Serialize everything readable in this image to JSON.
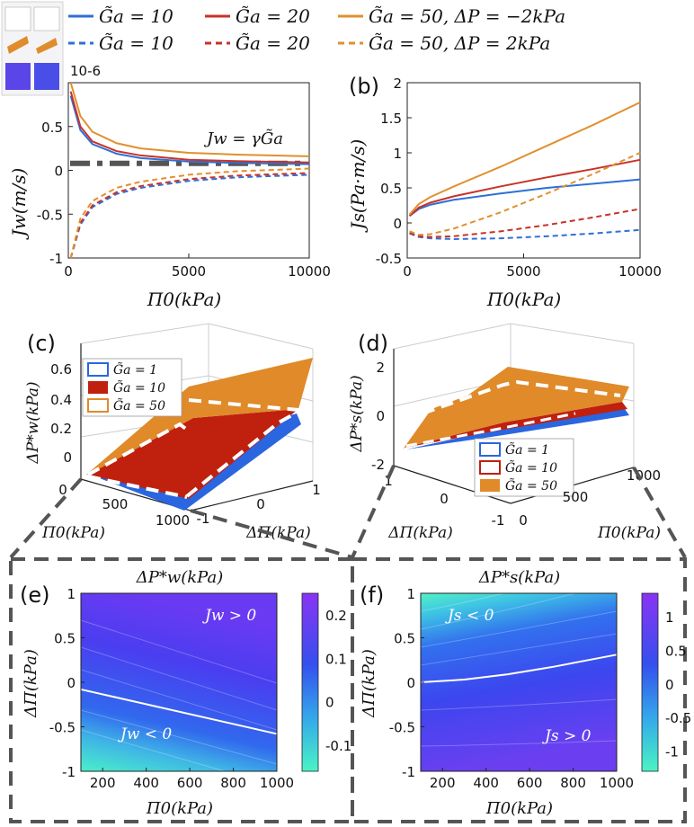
{
  "legend": {
    "entries": [
      {
        "label": "G̃a = 10",
        "color": "#2f6fd6",
        "style": "solid"
      },
      {
        "label": "G̃a = 20",
        "color": "#c83228",
        "style": "solid"
      },
      {
        "label": "G̃a = 50, ΔP = −2kPa",
        "color": "#e0902e",
        "style": "solid"
      },
      {
        "label": "G̃a = 10",
        "color": "#2f6fd6",
        "style": "dashed"
      },
      {
        "label": "G̃a = 20",
        "color": "#c83228",
        "style": "dashed"
      },
      {
        "label": "G̃a = 50, ΔP = 2kPa",
        "color": "#e0902e",
        "style": "dashed"
      }
    ]
  },
  "panels": {
    "a": {
      "label": "(a)",
      "exponent": "10-6",
      "annotation": "Jw = γG̃a"
    },
    "b": {
      "label": "(b)"
    },
    "c": {
      "label": "(c)"
    },
    "d": {
      "label": "(d)"
    },
    "e": {
      "label": "(e)",
      "title": "ΔP*w(kPa)",
      "region_top": "Jw > 0",
      "region_bottom": "Jw < 0"
    },
    "f": {
      "label": "(f)",
      "title": "ΔP*s(kPa)",
      "region_top": "Js < 0",
      "region_bottom": "Js > 0"
    }
  },
  "colors": {
    "blue": "#2f6fd6",
    "red": "#c83228",
    "orange": "#e0902e",
    "frame": "#555555"
  },
  "chart_data": [
    {
      "id": "a",
      "type": "line",
      "xlabel": "Π0(kPa)",
      "ylabel": "Jw(m/s)",
      "xlim": [
        0,
        10000
      ],
      "ylim": [
        -1,
        1
      ],
      "xticks": [
        "0",
        "5000",
        "10000"
      ],
      "yticks": [
        "-1",
        "-0.5",
        "0",
        "0.5"
      ],
      "series": [
        {
          "name": "G̃a=10, ΔP=-2kPa",
          "style": "solid",
          "color": "blue",
          "x": [
            100,
            500,
            1000,
            2000,
            3000,
            5000,
            7000,
            10000
          ],
          "y": [
            0.85,
            0.46,
            0.3,
            0.19,
            0.14,
            0.1,
            0.085,
            0.07
          ]
        },
        {
          "name": "G̃a=20, ΔP=-2kPa",
          "style": "solid",
          "color": "red",
          "x": [
            100,
            500,
            1000,
            2000,
            3000,
            5000,
            7000,
            10000
          ],
          "y": [
            0.9,
            0.5,
            0.33,
            0.22,
            0.17,
            0.12,
            0.105,
            0.09
          ]
        },
        {
          "name": "G̃a=50, ΔP=-2kPa",
          "style": "solid",
          "color": "orange",
          "x": [
            100,
            500,
            1000,
            2000,
            3000,
            5000,
            7000,
            10000
          ],
          "y": [
            1.0,
            0.62,
            0.44,
            0.31,
            0.25,
            0.2,
            0.18,
            0.16
          ]
        },
        {
          "name": "G̃a=10, ΔP=2kPa",
          "style": "dashed",
          "color": "blue",
          "x": [
            100,
            500,
            1000,
            2000,
            3000,
            5000,
            7000,
            10000
          ],
          "y": [
            -1.0,
            -0.62,
            -0.42,
            -0.27,
            -0.2,
            -0.12,
            -0.08,
            -0.05
          ]
        },
        {
          "name": "G̃a=20, ΔP=2kPa",
          "style": "dashed",
          "color": "red",
          "x": [
            100,
            500,
            1000,
            2000,
            3000,
            5000,
            7000,
            10000
          ],
          "y": [
            -1.0,
            -0.6,
            -0.4,
            -0.25,
            -0.18,
            -0.1,
            -0.06,
            -0.03
          ]
        },
        {
          "name": "G̃a=50, ΔP=2kPa",
          "style": "dashed",
          "color": "orange",
          "x": [
            100,
            500,
            1000,
            2000,
            3000,
            5000,
            7000,
            10000
          ],
          "y": [
            -1.0,
            -0.55,
            -0.35,
            -0.2,
            -0.13,
            -0.05,
            -0.01,
            0.02
          ]
        }
      ],
      "reference_line": {
        "y": 0.08,
        "label": "Jw = γG̃a"
      }
    },
    {
      "id": "b",
      "type": "line",
      "xlabel": "Π0(kPa)",
      "ylabel": "Js(Pa·m/s)",
      "xlim": [
        0,
        10000
      ],
      "ylim": [
        -0.5,
        2
      ],
      "xticks": [
        "0",
        "5000",
        "10000"
      ],
      "yticks": [
        "-0.5",
        "0",
        "0.5",
        "1",
        "1.5",
        "2"
      ],
      "series": [
        {
          "name": "G̃a=10, ΔP=-2kPa",
          "style": "solid",
          "color": "blue",
          "x": [
            100,
            500,
            1000,
            2000,
            4000,
            6000,
            8000,
            10000
          ],
          "y": [
            0.1,
            0.2,
            0.26,
            0.33,
            0.42,
            0.5,
            0.56,
            0.62
          ]
        },
        {
          "name": "G̃a=20, ΔP=-2kPa",
          "style": "solid",
          "color": "red",
          "x": [
            100,
            500,
            1000,
            2000,
            4000,
            6000,
            8000,
            10000
          ],
          "y": [
            0.1,
            0.22,
            0.29,
            0.38,
            0.52,
            0.65,
            0.77,
            0.9
          ]
        },
        {
          "name": "G̃a=50, ΔP=-2kPa",
          "style": "solid",
          "color": "orange",
          "x": [
            100,
            500,
            1000,
            2000,
            4000,
            6000,
            8000,
            10000
          ],
          "y": [
            0.12,
            0.27,
            0.37,
            0.52,
            0.8,
            1.1,
            1.4,
            1.72
          ]
        },
        {
          "name": "G̃a=10, ΔP=2kPa",
          "style": "dashed",
          "color": "blue",
          "x": [
            100,
            500,
            1000,
            2000,
            4000,
            6000,
            8000,
            10000
          ],
          "y": [
            -0.15,
            -0.2,
            -0.22,
            -0.23,
            -0.22,
            -0.19,
            -0.15,
            -0.1
          ]
        },
        {
          "name": "G̃a=20, ΔP=2kPa",
          "style": "dashed",
          "color": "red",
          "x": [
            100,
            500,
            1000,
            2000,
            4000,
            6000,
            8000,
            10000
          ],
          "y": [
            -0.14,
            -0.19,
            -0.2,
            -0.19,
            -0.12,
            -0.03,
            0.08,
            0.2
          ]
        },
        {
          "name": "G̃a=50, ΔP=2kPa",
          "style": "dashed",
          "color": "orange",
          "x": [
            100,
            500,
            1000,
            2000,
            4000,
            6000,
            8000,
            10000
          ],
          "y": [
            -0.12,
            -0.17,
            -0.16,
            -0.08,
            0.15,
            0.42,
            0.7,
            1.0
          ]
        }
      ]
    },
    {
      "id": "c",
      "type": "surface3d",
      "zlabel": "ΔP*w(kPa)",
      "xlabel": "Π0(kPa)",
      "ylabel": "ΔΠ(kPa)",
      "zticks": [
        "0",
        "0.2",
        "0.4",
        "0.6"
      ],
      "xticks": [
        "0",
        "500",
        "1000"
      ],
      "yticks": [
        "-1",
        "0",
        "1"
      ],
      "legend": [
        "G̃a = 1",
        "G̃a = 10",
        "G̃a = 50"
      ]
    },
    {
      "id": "d",
      "type": "surface3d",
      "zlabel": "ΔP*s(kPa)",
      "xlabel": "Π0(kPa)",
      "ylabel": "ΔΠ(kPa)",
      "zticks": [
        "-2",
        "0",
        "2"
      ],
      "xticks": [
        "0",
        "500",
        "1000"
      ],
      "yticks": [
        "-1",
        "0",
        "1"
      ],
      "legend": [
        "G̃a = 1",
        "G̃a = 10",
        "G̃a = 50"
      ]
    },
    {
      "id": "e",
      "type": "heatmap",
      "xlabel": "Π0(kPa)",
      "ylabel": "ΔΠ(kPa)",
      "xlim": [
        100,
        1000
      ],
      "ylim": [
        -1,
        1
      ],
      "xticks": [
        "200",
        "400",
        "600",
        "800",
        "1000"
      ],
      "yticks": [
        "-1",
        "-0.5",
        "0",
        "0.5",
        "1"
      ],
      "colorbar_ticks": [
        "-0.1",
        "0",
        "0.1",
        "0.2"
      ],
      "zero_contour": {
        "x": [
          100,
          1000
        ],
        "y": [
          -0.08,
          -0.58
        ]
      }
    },
    {
      "id": "f",
      "type": "heatmap",
      "xlabel": "Π0(kPa)",
      "ylabel": "ΔΠ(kPa)",
      "xlim": [
        100,
        1000
      ],
      "ylim": [
        -1,
        1
      ],
      "xticks": [
        "200",
        "400",
        "600",
        "800",
        "1000"
      ],
      "yticks": [
        "-1",
        "-0.5",
        "0",
        "0.5",
        "1"
      ],
      "colorbar_ticks": [
        "-1",
        "-0.5",
        "0",
        "0.5",
        "1"
      ],
      "zero_contour": {
        "x": [
          100,
          300,
          500,
          700,
          1000
        ],
        "y": [
          0.0,
          0.03,
          0.09,
          0.17,
          0.31
        ]
      }
    }
  ]
}
